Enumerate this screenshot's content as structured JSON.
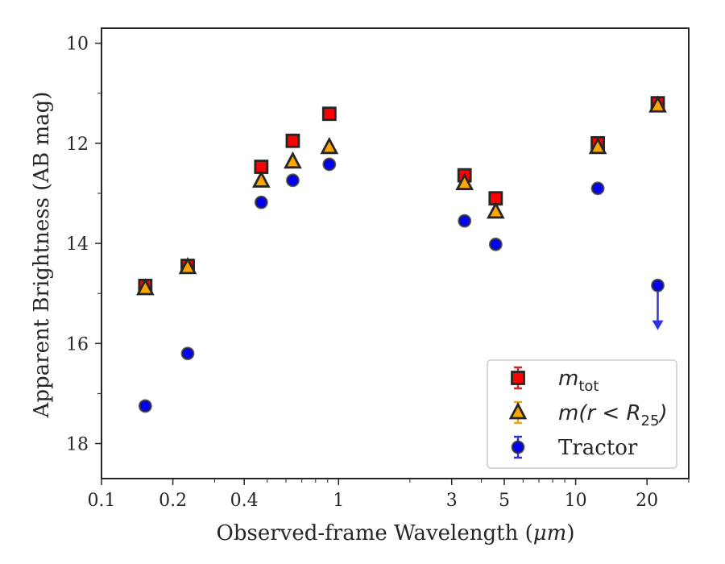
{
  "chart_data": {
    "type": "scatter",
    "xlabel_prefix": "Observed-frame Wavelength (",
    "xlabel_unit": "μm",
    "xlabel_suffix": ")",
    "ylabel": "Apparent Brightness (AB mag)",
    "x_scale": "log",
    "xlim": [
      0.1,
      30
    ],
    "ylim": [
      18.7,
      9.7
    ],
    "y_inverted": true,
    "grid": false,
    "legend_position": "lower-right",
    "x_ticks": [
      {
        "value": 0.1,
        "label": "0.1"
      },
      {
        "value": 0.2,
        "label": "0.2"
      },
      {
        "value": 0.4,
        "label": "0.4"
      },
      {
        "value": 1,
        "label": "1"
      },
      {
        "value": 3,
        "label": "3"
      },
      {
        "value": 5,
        "label": "5"
      },
      {
        "value": 10,
        "label": "10"
      },
      {
        "value": 20,
        "label": "20"
      }
    ],
    "x_minor_ticks": [
      0.3,
      0.5,
      0.6,
      0.7,
      0.8,
      0.9,
      2,
      4,
      6,
      7,
      8,
      9,
      30
    ],
    "y_ticks": [
      {
        "value": 10,
        "label": "10"
      },
      {
        "value": 12,
        "label": "12"
      },
      {
        "value": 14,
        "label": "14"
      },
      {
        "value": 16,
        "label": "16"
      },
      {
        "value": 18,
        "label": "18"
      }
    ],
    "y_minor_ticks": [
      11,
      13,
      15,
      17
    ],
    "series": [
      {
        "legend_main": "m",
        "legend_sub": "tot",
        "marker": "square",
        "fill": "#ff0000",
        "edge": "#262626",
        "errcolor": "#d62728",
        "points": [
          {
            "x": 0.153,
            "y": 14.85
          },
          {
            "x": 0.231,
            "y": 14.45
          },
          {
            "x": 0.472,
            "y": 12.47
          },
          {
            "x": 0.641,
            "y": 11.95
          },
          {
            "x": 0.914,
            "y": 11.41
          },
          {
            "x": 3.4,
            "y": 12.64
          },
          {
            "x": 4.6,
            "y": 13.1
          },
          {
            "x": 12.4,
            "y": 12.0
          },
          {
            "x": 22.2,
            "y": 11.2
          }
        ]
      },
      {
        "legend_main": "m(r < R",
        "legend_sub": "25",
        "legend_tail": ")",
        "marker": "triangle",
        "fill": "#ffa500",
        "edge": "#262626",
        "errcolor": "#e6a817",
        "points": [
          {
            "x": 0.153,
            "y": 14.9
          },
          {
            "x": 0.231,
            "y": 14.48
          },
          {
            "x": 0.472,
            "y": 12.75
          },
          {
            "x": 0.641,
            "y": 12.37
          },
          {
            "x": 0.914,
            "y": 12.08
          },
          {
            "x": 3.4,
            "y": 12.8
          },
          {
            "x": 4.6,
            "y": 13.37
          },
          {
            "x": 12.4,
            "y": 12.08
          },
          {
            "x": 22.2,
            "y": 11.25
          }
        ]
      },
      {
        "legend_main": "Tractor",
        "marker": "circle",
        "fill": "#0000ff",
        "edge": "#262626",
        "errcolor": "#3333dd",
        "points": [
          {
            "x": 0.153,
            "y": 17.25
          },
          {
            "x": 0.231,
            "y": 16.2
          },
          {
            "x": 0.472,
            "y": 13.18
          },
          {
            "x": 0.641,
            "y": 12.74
          },
          {
            "x": 0.914,
            "y": 12.42
          },
          {
            "x": 3.4,
            "y": 13.55
          },
          {
            "x": 4.6,
            "y": 14.02
          },
          {
            "x": 12.4,
            "y": 12.9
          },
          {
            "x": 22.2,
            "y": 14.84,
            "upper_limit": true,
            "arrow_to": 15.7
          }
        ]
      }
    ]
  }
}
